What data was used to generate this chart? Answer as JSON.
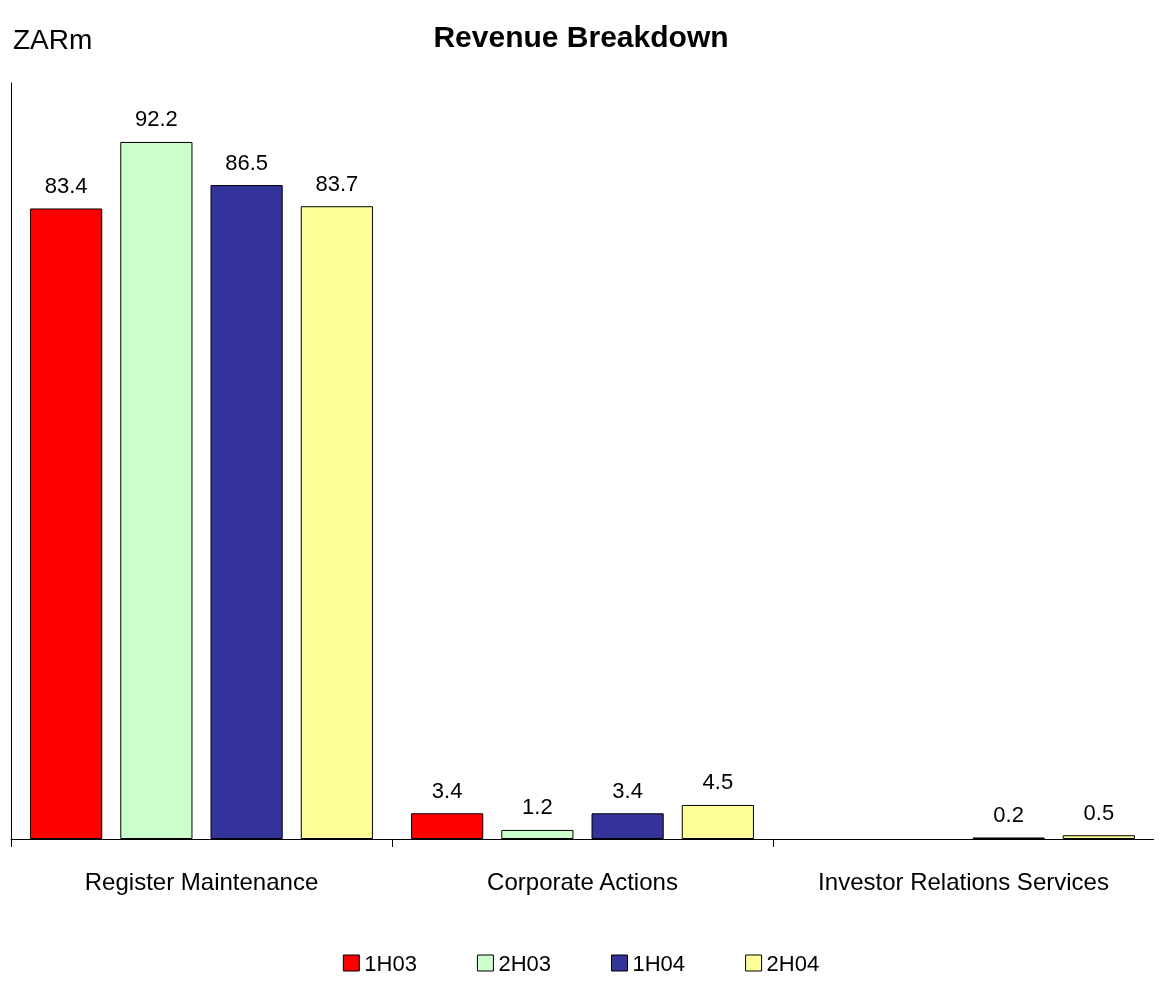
{
  "chart_data": {
    "type": "bar",
    "title": "Revenue Breakdown",
    "ylabel": "ZARm",
    "categories": [
      "Register Maintenance",
      "Corporate Actions",
      "Investor Relations Services"
    ],
    "series": [
      {
        "name": "1H03",
        "color": "#ff0000",
        "values": [
          83.4,
          3.4,
          null
        ]
      },
      {
        "name": "2H03",
        "color": "#ccffcc",
        "values": [
          92.2,
          1.2,
          null
        ]
      },
      {
        "name": "1H04",
        "color": "#333399",
        "values": [
          86.5,
          3.4,
          0.2
        ]
      },
      {
        "name": "2H04",
        "color": "#ffff99",
        "values": [
          83.7,
          4.5,
          0.5
        ]
      }
    ],
    "data_labels": true,
    "grid": false,
    "legend": "bottom"
  }
}
